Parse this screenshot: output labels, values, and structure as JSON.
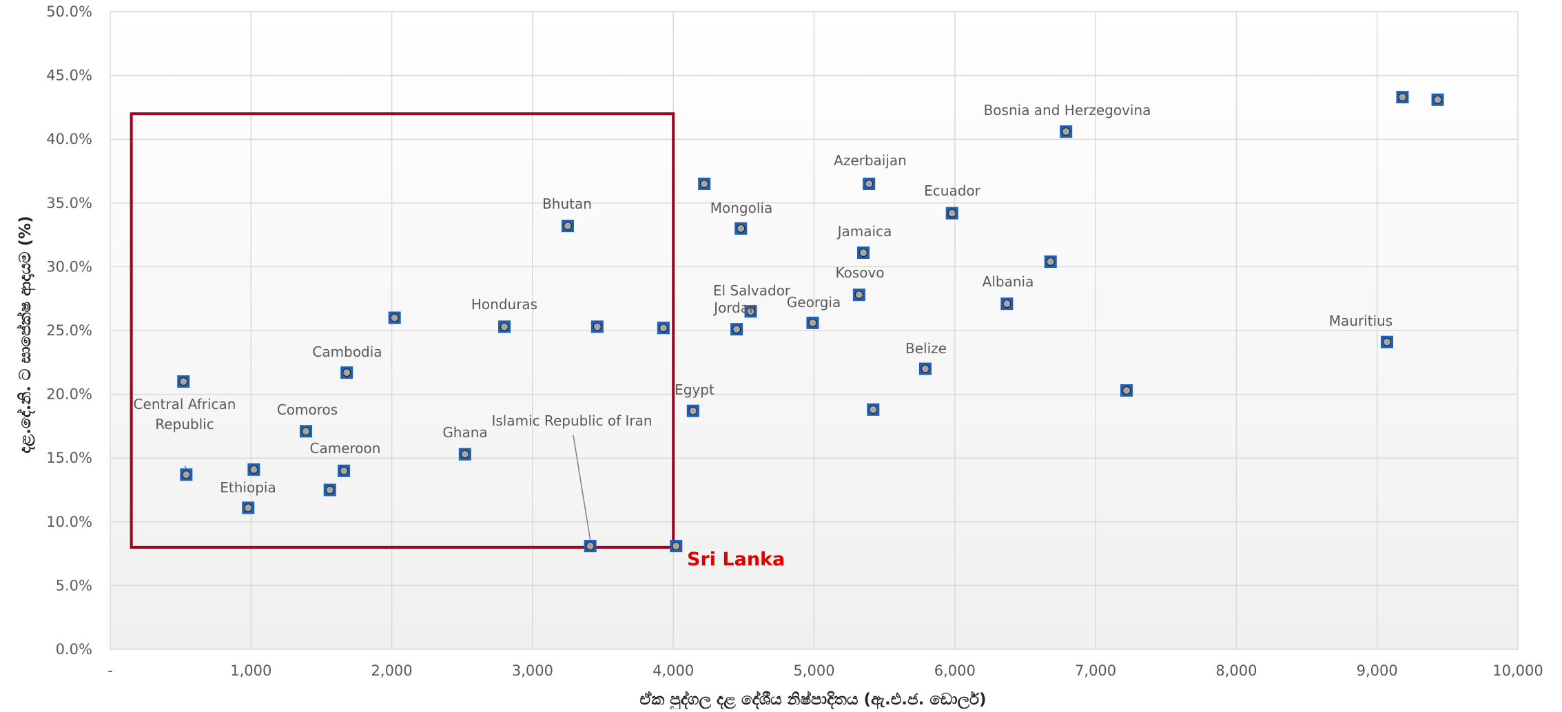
{
  "chart_data": {
    "type": "scatter",
    "xlabel": "ඒක පුද්ගල දළ දේශීය නිෂ්පාදිතය (ඇ.එ.ජ. ඩොලර්)",
    "ylabel": "දළ.දේ.නි. ට සාපේක්ෂ ආදායම (%)",
    "xlim": [
      0,
      10000
    ],
    "ylim": [
      0,
      0.5
    ],
    "x_ticks": [
      "-",
      "1,000",
      "2,000",
      "3,000",
      "4,000",
      "5,000",
      "6,000",
      "7,000",
      "8,000",
      "9,000",
      "10,000"
    ],
    "y_ticks": [
      "0.0%",
      "5.0%",
      "10.0%",
      "15.0%",
      "20.0%",
      "25.0%",
      "30.0%",
      "35.0%",
      "40.0%",
      "45.0%",
      "50.0%"
    ],
    "grid": true,
    "highlight_box": {
      "x": [
        150,
        4000
      ],
      "y": [
        0.08,
        0.42
      ],
      "color": "#a50021"
    },
    "marker_color": "#1f5fb4",
    "marker_fill": "#a6a6a6",
    "points": [
      {
        "x": 520,
        "y": 0.21,
        "label": ""
      },
      {
        "x": 540,
        "y": 0.137,
        "label": "Central African Republic"
      },
      {
        "x": 980,
        "y": 0.111,
        "label": "Ethiopia"
      },
      {
        "x": 1020,
        "y": 0.141,
        "label": ""
      },
      {
        "x": 1390,
        "y": 0.171,
        "label": "Comoros"
      },
      {
        "x": 1560,
        "y": 0.125,
        "label": ""
      },
      {
        "x": 1660,
        "y": 0.14,
        "label": "Cameroon"
      },
      {
        "x": 1680,
        "y": 0.217,
        "label": "Cambodia"
      },
      {
        "x": 2020,
        "y": 0.26,
        "label": ""
      },
      {
        "x": 2520,
        "y": 0.153,
        "label": "Ghana"
      },
      {
        "x": 2800,
        "y": 0.253,
        "label": "Honduras"
      },
      {
        "x": 3250,
        "y": 0.332,
        "label": "Bhutan"
      },
      {
        "x": 3410,
        "y": 0.081,
        "label": "Islamic Republic of Iran"
      },
      {
        "x": 3460,
        "y": 0.253,
        "label": ""
      },
      {
        "x": 3930,
        "y": 0.252,
        "label": ""
      },
      {
        "x": 4020,
        "y": 0.081,
        "label": "Sri Lanka"
      },
      {
        "x": 4140,
        "y": 0.187,
        "label": "Egypt"
      },
      {
        "x": 4220,
        "y": 0.365,
        "label": ""
      },
      {
        "x": 4450,
        "y": 0.251,
        "label": "Jordan"
      },
      {
        "x": 4480,
        "y": 0.33,
        "label": "Mongolia"
      },
      {
        "x": 4550,
        "y": 0.265,
        "label": "El Salvador"
      },
      {
        "x": 4990,
        "y": 0.256,
        "label": "Georgia"
      },
      {
        "x": 5320,
        "y": 0.278,
        "label": "Kosovo"
      },
      {
        "x": 5350,
        "y": 0.311,
        "label": "Jamaica"
      },
      {
        "x": 5390,
        "y": 0.365,
        "label": "Azerbaijan"
      },
      {
        "x": 5420,
        "y": 0.188,
        "label": ""
      },
      {
        "x": 5790,
        "y": 0.22,
        "label": "Belize"
      },
      {
        "x": 5980,
        "y": 0.342,
        "label": "Ecuador"
      },
      {
        "x": 6370,
        "y": 0.271,
        "label": "Albania"
      },
      {
        "x": 6680,
        "y": 0.304,
        "label": ""
      },
      {
        "x": 6790,
        "y": 0.406,
        "label": "Bosnia and Herzegovina"
      },
      {
        "x": 7220,
        "y": 0.203,
        "label": ""
      },
      {
        "x": 9070,
        "y": 0.241,
        "label": "Mauritius"
      },
      {
        "x": 9180,
        "y": 0.433,
        "label": ""
      },
      {
        "x": 9430,
        "y": 0.431,
        "label": ""
      }
    ]
  }
}
